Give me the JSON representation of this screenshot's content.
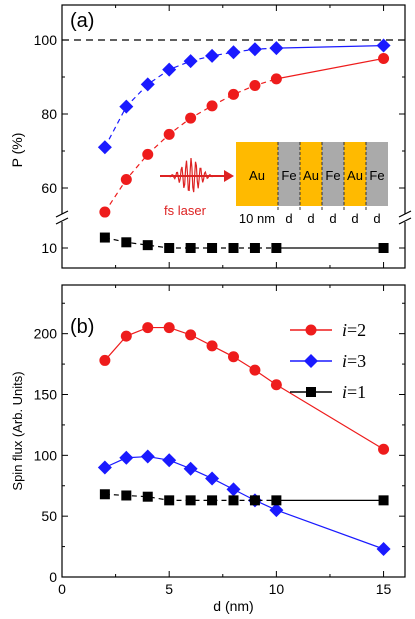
{
  "colors": {
    "red": "#ee1c1c",
    "blue": "#1a1aff",
    "black": "#000000",
    "gold": "#ffba00",
    "gray": "#aaaaaa",
    "laser": "#dd2222"
  },
  "chart_data": [
    {
      "type": "line",
      "panel_label": "(a)",
      "xlabel": "",
      "ylabel": "P (%)",
      "xlim": [
        0,
        16
      ],
      "ylim_upper": [
        50,
        105
      ],
      "ylim_lower": [
        8,
        12.5
      ],
      "axis_break": true,
      "reference_line": {
        "y": 100,
        "style": "dashed"
      },
      "x_ticks": [
        0,
        5,
        10,
        15
      ],
      "y_ticks_upper": [
        "60",
        "80",
        "100"
      ],
      "y_ticks_lower": [
        "10"
      ],
      "series": [
        {
          "color": "blue",
          "marker": "diamond",
          "x": [
            2,
            3,
            4,
            5,
            6,
            7,
            8,
            9,
            10,
            15
          ],
          "values": [
            71,
            82,
            88,
            92,
            94.3,
            95.7,
            96.7,
            97.5,
            97.8,
            98.5
          ]
        },
        {
          "color": "red",
          "marker": "circle",
          "x": [
            2,
            3,
            4,
            5,
            6,
            7,
            8,
            9,
            10,
            15
          ],
          "values": [
            53.5,
            62.3,
            69.1,
            74.5,
            78.9,
            82.2,
            85.3,
            87.7,
            89.5,
            95
          ]
        },
        {
          "color": "black",
          "marker": "square",
          "x": [
            2,
            3,
            4,
            5,
            6,
            7,
            8,
            9,
            10,
            15
          ],
          "values": [
            11.1,
            10.6,
            10.3,
            10,
            10,
            10,
            10,
            10,
            10,
            10
          ]
        }
      ],
      "inset": {
        "laser_label": "fs laser",
        "layers": [
          "Au",
          "Fe",
          "Au",
          "Fe",
          "Au",
          "Fe"
        ],
        "thickness_labels": [
          "10 nm",
          "d",
          "d",
          "d",
          "d",
          "d"
        ]
      }
    },
    {
      "type": "line",
      "panel_label": "(b)",
      "xlabel": "d (nm)",
      "ylabel": "Spin flux (Arb. Units)",
      "xlim": [
        0,
        16
      ],
      "ylim": [
        0,
        240
      ],
      "x_ticks": [
        "0",
        "5",
        "10",
        "15"
      ],
      "y_ticks": [
        "0",
        "50",
        "100",
        "150",
        "200"
      ],
      "legend_position": "top-right",
      "series": [
        {
          "name": "i=2",
          "name_italic": "i",
          "name_rest": "=2",
          "color": "red",
          "marker": "circle",
          "x": [
            2,
            3,
            4,
            5,
            6,
            7,
            8,
            9,
            10,
            15
          ],
          "values": [
            178,
            198,
            205,
            205,
            199,
            190,
            181,
            170,
            158,
            105
          ]
        },
        {
          "name": "i=3",
          "name_italic": "i",
          "name_rest": "=3",
          "color": "blue",
          "marker": "diamond",
          "x": [
            2,
            3,
            4,
            5,
            6,
            7,
            8,
            9,
            10,
            15
          ],
          "values": [
            90,
            98,
            99,
            96,
            89,
            81,
            72,
            63,
            55,
            23
          ]
        },
        {
          "name": "i=1",
          "name_italic": "i",
          "name_rest": "=1",
          "color": "black",
          "marker": "square",
          "x": [
            2,
            3,
            4,
            5,
            6,
            7,
            8,
            9,
            10,
            15
          ],
          "values": [
            68,
            67,
            66,
            63,
            63,
            63,
            63,
            63,
            63,
            63
          ]
        }
      ]
    }
  ]
}
